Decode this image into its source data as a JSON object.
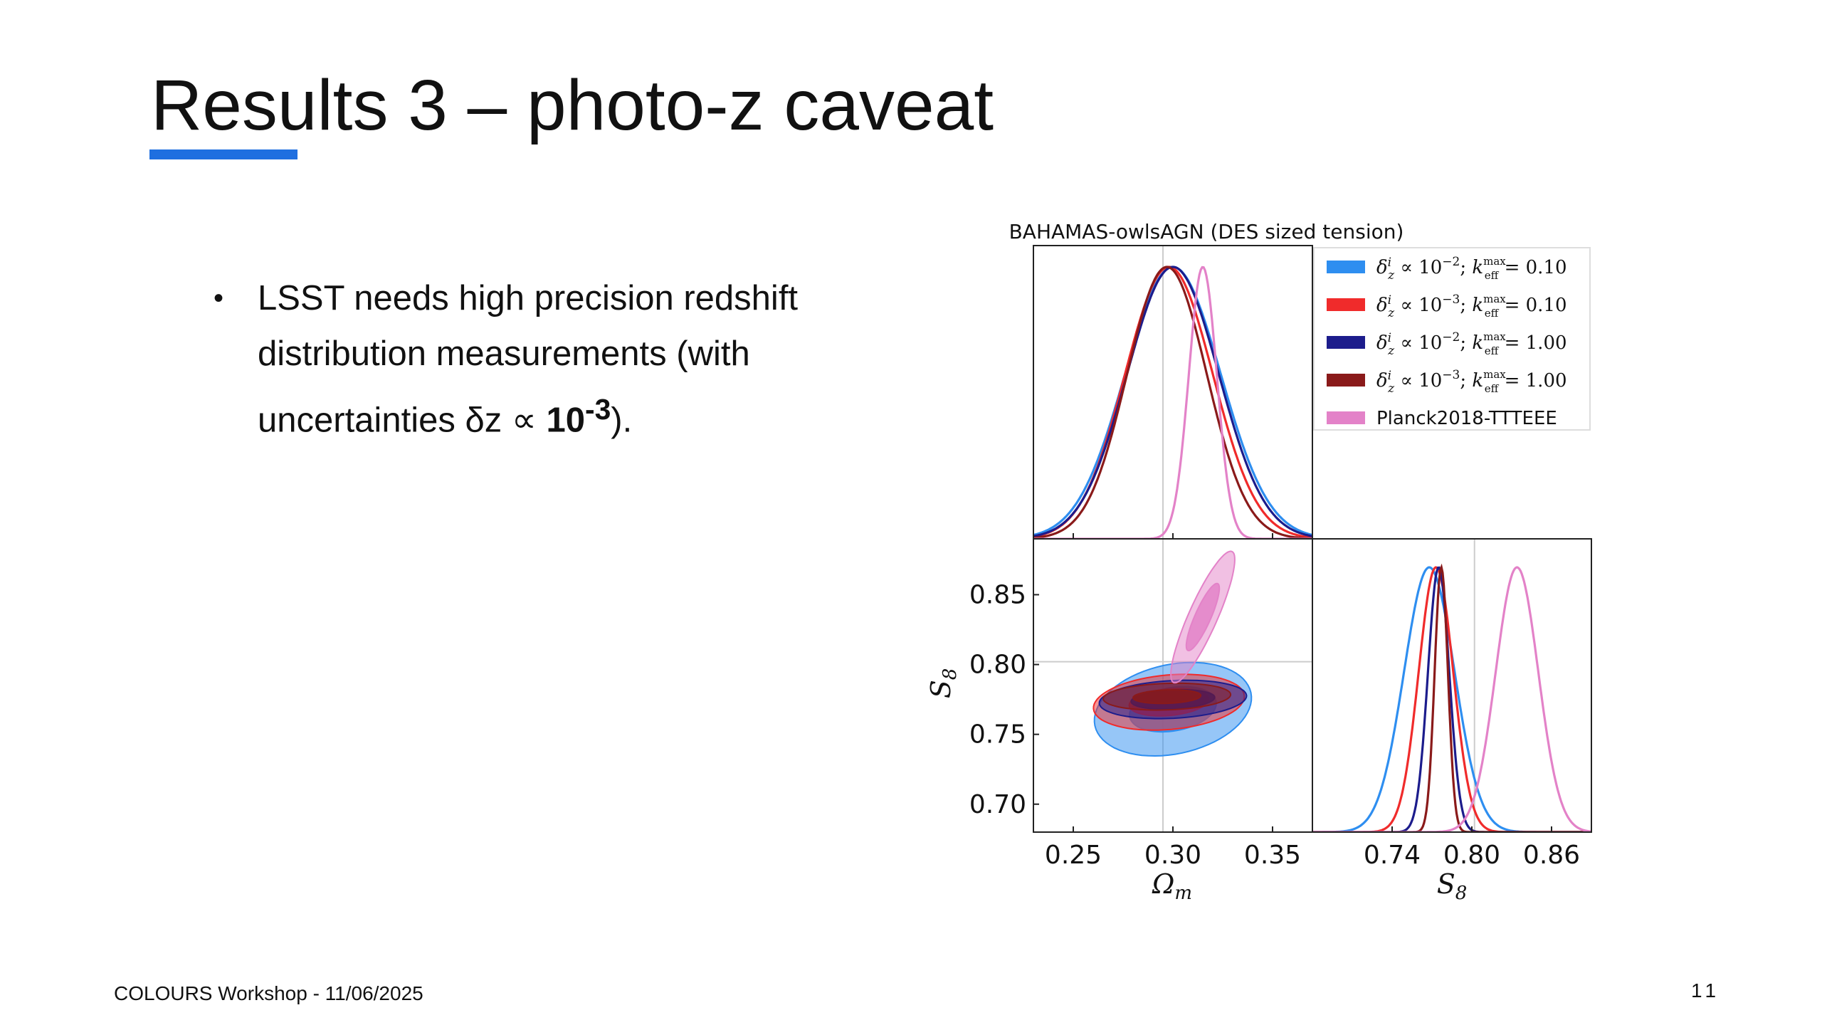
{
  "slide": {
    "title": "Results 3 – photo-z caveat",
    "accent_color": "#1f6fe0",
    "bullet": {
      "text_before": "LSST needs high precision redshift distribution measurements (with uncertainties δz ∝ ",
      "emphasis": "10",
      "superscript": "-3",
      "text_after": ")."
    },
    "footer": "COLOURS Workshop - 11/06/2025",
    "page_number": "11"
  },
  "chart_data": {
    "type": "corner",
    "title": "BAHAMAS-owlsAGN (DES sized tension)",
    "parameters": [
      "Ωm",
      "S8"
    ],
    "reference_lines": {
      "Omega_m": 0.295,
      "S8": 0.802
    },
    "axes": {
      "omega_m": {
        "label": "Ωm",
        "lim": [
          0.23,
          0.37
        ],
        "ticks": [
          "0.25",
          "0.30",
          "0.35"
        ],
        "tick_values": [
          0.25,
          0.3,
          0.35
        ]
      },
      "s8": {
        "label": "S8",
        "lim": [
          0.68,
          0.89
        ],
        "ticks": [
          "0.70",
          "0.75",
          "0.80",
          "0.85"
        ],
        "tick_values": [
          0.7,
          0.75,
          0.8,
          0.85
        ]
      },
      "s8_marginal": {
        "lim": [
          0.68,
          0.89
        ],
        "ticks": [
          "0.74",
          "0.80",
          "0.86"
        ],
        "tick_values": [
          0.74,
          0.8,
          0.86
        ]
      }
    },
    "legend_position": "top-right",
    "series": [
      {
        "name": "δ_z^i ∝ 10^−2; k_eff^max = 0.10",
        "legend": {
          "base": "10",
          "exp": "−2",
          "kval": "0.10"
        },
        "color": "#2e8ef0",
        "omega_m": {
          "mean": 0.3,
          "sigma": 0.024
        },
        "s8": {
          "mean": 0.768,
          "sigma": 0.019
        },
        "ellipse_68": {
          "a": 0.022,
          "b": 0.0155,
          "angle_deg": 10
        },
        "ellipse_95": {
          "a": 0.04,
          "b": 0.032,
          "angle_deg": 12
        }
      },
      {
        "name": "δ_z^i ∝ 10^−3; k_eff^max = 0.10",
        "legend": {
          "base": "10",
          "exp": "−3",
          "kval": "0.10"
        },
        "color": "#f02b2b",
        "omega_m": {
          "mean": 0.298,
          "sigma": 0.022
        },
        "s8": {
          "mean": 0.773,
          "sigma": 0.013
        },
        "ellipse_68": {
          "a": 0.02,
          "b": 0.0095,
          "angle_deg": 5
        },
        "ellipse_95": {
          "a": 0.038,
          "b": 0.0195,
          "angle_deg": 5
        }
      },
      {
        "name": "δ_z^i ∝ 10^−2; k_eff^max = 1.00",
        "legend": {
          "base": "10",
          "exp": "−2",
          "kval": "1.00"
        },
        "color": "#1c1c8c",
        "omega_m": {
          "mean": 0.3,
          "sigma": 0.023
        },
        "s8": {
          "mean": 0.775,
          "sigma": 0.008
        },
        "ellipse_68": {
          "a": 0.021,
          "b": 0.0068,
          "angle_deg": 3
        },
        "ellipse_95": {
          "a": 0.037,
          "b": 0.0135,
          "angle_deg": 3
        }
      },
      {
        "name": "δ_z^i ∝ 10^−3; k_eff^max = 1.00",
        "legend": {
          "base": "10",
          "exp": "−3",
          "kval": "1.00"
        },
        "color": "#8a1a1a",
        "omega_m": {
          "mean": 0.297,
          "sigma": 0.02
        },
        "s8": {
          "mean": 0.777,
          "sigma": 0.005
        },
        "ellipse_68": {
          "a": 0.017,
          "b": 0.0048,
          "angle_deg": 2
        },
        "ellipse_95": {
          "a": 0.032,
          "b": 0.0095,
          "angle_deg": 2
        }
      },
      {
        "name": "Planck2018-TTTEEE",
        "color": "#e382c8",
        "omega_m": {
          "mean": 0.315,
          "sigma": 0.007
        },
        "s8": {
          "mean": 0.834,
          "sigma": 0.016
        },
        "ellipse_68": {
          "a": 0.0255,
          "b": 0.0055,
          "angle_deg": 66
        },
        "ellipse_95": {
          "a": 0.05,
          "b": 0.01,
          "angle_deg": 66
        }
      }
    ]
  }
}
